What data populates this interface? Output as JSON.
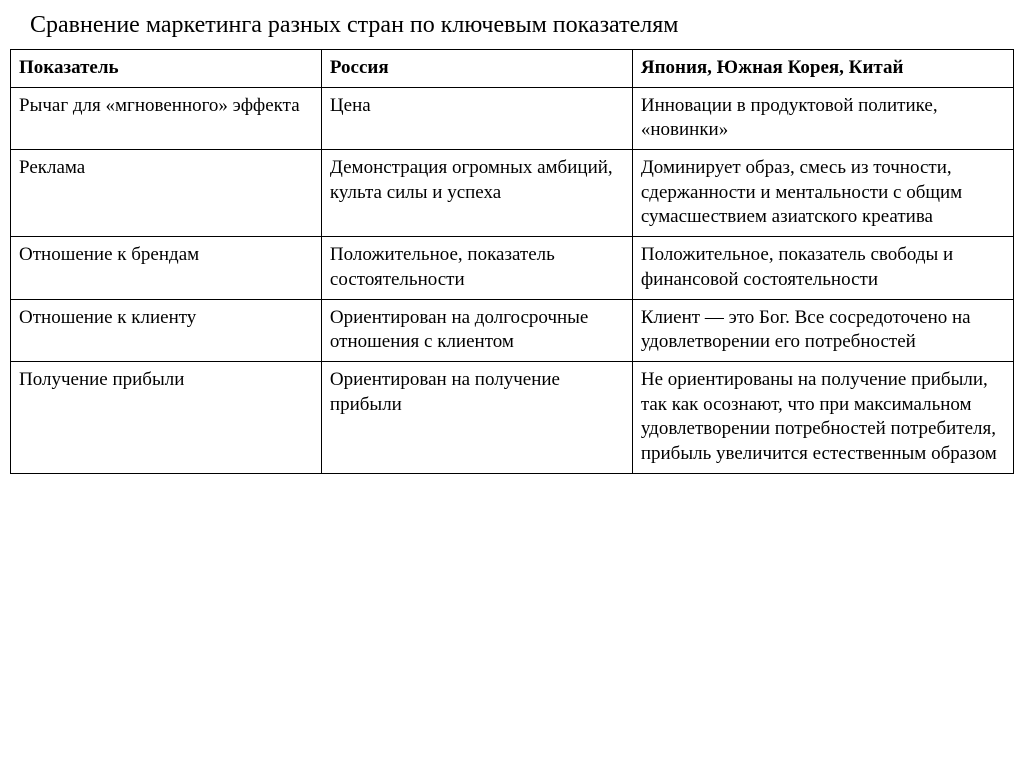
{
  "title": "Сравнение маркетинга разных стран по ключевым показателям",
  "table": {
    "columns": [
      "Показатель",
      "Россия",
      "Япония, Южная Корея, Китай"
    ],
    "rows": [
      [
        "Рычаг для «мгновенного» эффекта",
        "Цена",
        "Инновации в продуктовой политике, «новинки»"
      ],
      [
        "Реклама",
        "Демонстрация огромных амбиций, культа силы и успеха",
        "Доминирует образ, смесь из точности, сдержанности и ментальности с общим сумасшествием азиатского креатива"
      ],
      [
        "Отношение к брендам",
        "Положительное, показатель состоятельности",
        "Положительное, показатель свободы и финансовой состоятельности"
      ],
      [
        "Отношение к клиенту",
        "Ориентирован на долгосрочные отношения с клиентом",
        "Клиент — это Бог. Все сосредоточено на удовлетворении его потребностей"
      ],
      [
        "Получение прибыли",
        "Ориентирован на получение прибыли",
        " Не ориентированы на получение прибыли, так как осознают, что при максимальном удовлетворении потребностей потребителя, прибыль увеличится естественным образом"
      ]
    ],
    "column_widths_pct": [
      31,
      31,
      38
    ],
    "border_color": "#000000",
    "background_color": "#ffffff",
    "title_fontsize": 24,
    "cell_fontsize": 19,
    "font_family": "Times New Roman"
  }
}
